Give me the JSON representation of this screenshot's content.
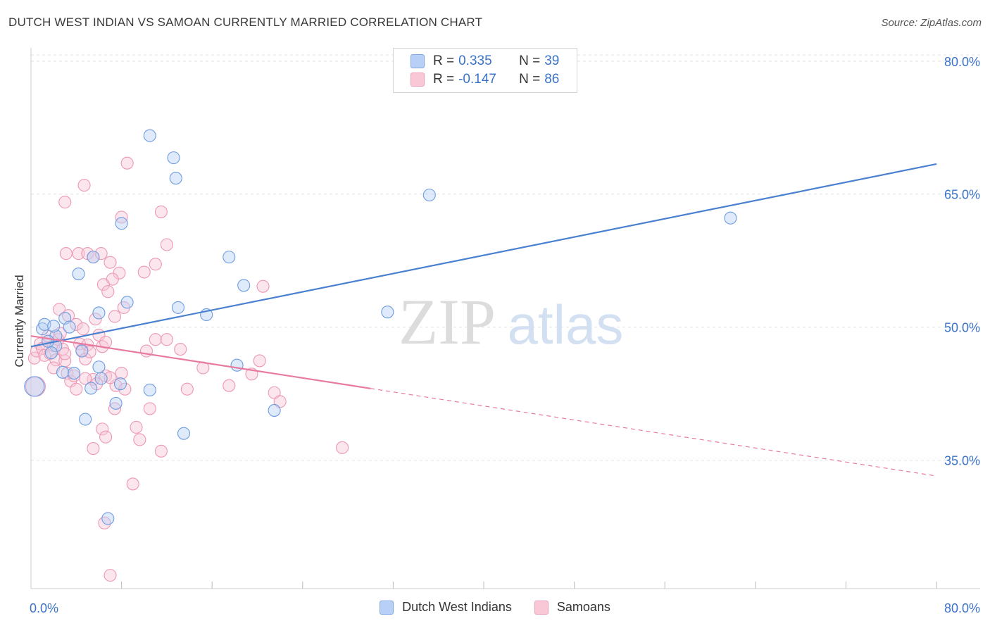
{
  "header": {
    "title": "DUTCH WEST INDIAN VS SAMOAN CURRENTLY MARRIED CORRELATION CHART",
    "source": "Source: ZipAtlas.com"
  },
  "watermark": {
    "zip": "ZIP",
    "atlas": "atlas"
  },
  "legend": {
    "r_label": "R =",
    "n_label": "N =",
    "series": [
      {
        "name": "Dutch West Indians",
        "r": "0.335",
        "n": "39",
        "color": "#7fa8e8",
        "fill": "#b8d0f5"
      },
      {
        "name": "Samoans",
        "r": "-0.147",
        "n": "86",
        "color": "#f0a0b8",
        "fill": "#f9c8d6"
      }
    ]
  },
  "chart_data": {
    "type": "scatter",
    "title": "DUTCH WEST INDIAN VS SAMOAN CURRENTLY MARRIED CORRELATION CHART",
    "xlabel": "",
    "ylabel": "Currently Married",
    "xlim": [
      0,
      80
    ],
    "ylim": [
      20.5,
      81.5
    ],
    "x_ticks": [
      "0.0%",
      "80.0%"
    ],
    "y_ticks": [
      {
        "value": 80,
        "label": "80.0%"
      },
      {
        "value": 65,
        "label": "65.0%"
      },
      {
        "value": 50,
        "label": "50.0%"
      },
      {
        "value": 35,
        "label": "35.0%"
      }
    ],
    "grid": true,
    "series": [
      {
        "name": "Dutch West Indians",
        "color": "#4a80d0",
        "trend": {
          "x0": 0,
          "y0": 47.8,
          "x1": 80,
          "y1": 68.4,
          "solid_until": 80
        },
        "points": [
          [
            1.0,
            49.8
          ],
          [
            1.2,
            50.3
          ],
          [
            2.2,
            49.0
          ],
          [
            2.0,
            50.1
          ],
          [
            2.2,
            47.9
          ],
          [
            1.5,
            48.4
          ],
          [
            3.0,
            51.0
          ],
          [
            4.5,
            47.3
          ],
          [
            2.8,
            44.9
          ],
          [
            3.8,
            44.8
          ],
          [
            6.0,
            45.5
          ],
          [
            5.3,
            43.1
          ],
          [
            6.2,
            44.2
          ],
          [
            7.9,
            43.6
          ],
          [
            4.8,
            39.6
          ],
          [
            7.5,
            41.4
          ],
          [
            6.8,
            28.4
          ],
          [
            4.2,
            56.0
          ],
          [
            5.5,
            57.9
          ],
          [
            6.0,
            51.6
          ],
          [
            8.5,
            52.8
          ],
          [
            8.0,
            61.7
          ],
          [
            10.5,
            71.6
          ],
          [
            12.6,
            69.1
          ],
          [
            12.8,
            66.8
          ],
          [
            13.0,
            52.2
          ],
          [
            15.5,
            51.4
          ],
          [
            17.5,
            57.9
          ],
          [
            18.8,
            54.7
          ],
          [
            10.5,
            42.9
          ],
          [
            13.5,
            38.0
          ],
          [
            18.2,
            45.7
          ],
          [
            21.5,
            40.6
          ],
          [
            31.5,
            51.7
          ],
          [
            35.2,
            64.9
          ],
          [
            61.8,
            62.3
          ],
          [
            0.3,
            43.3
          ],
          [
            1.8,
            47.1
          ],
          [
            3.4,
            50.0
          ]
        ]
      },
      {
        "name": "Samoans",
        "color": "#e87aa0",
        "trend": {
          "x0": 0,
          "y0": 49.0,
          "x1": 80,
          "y1": 33.2,
          "solid_until": 30
        },
        "points": [
          [
            0.3,
            46.5
          ],
          [
            0.5,
            47.3
          ],
          [
            0.8,
            48.1
          ],
          [
            1.0,
            47.6
          ],
          [
            1.2,
            46.8
          ],
          [
            1.5,
            48.4
          ],
          [
            1.7,
            47.0
          ],
          [
            2.0,
            47.9
          ],
          [
            2.2,
            46.3
          ],
          [
            2.4,
            48.6
          ],
          [
            2.6,
            49.3
          ],
          [
            2.8,
            47.5
          ],
          [
            3.0,
            46.2
          ],
          [
            3.2,
            44.8
          ],
          [
            3.5,
            43.9
          ],
          [
            3.8,
            44.5
          ],
          [
            4.0,
            43.0
          ],
          [
            4.3,
            48.1
          ],
          [
            4.5,
            47.4
          ],
          [
            4.8,
            46.4
          ],
          [
            5.0,
            48.0
          ],
          [
            5.2,
            47.2
          ],
          [
            5.5,
            44.1
          ],
          [
            5.8,
            43.6
          ],
          [
            6.0,
            49.1
          ],
          [
            6.3,
            47.8
          ],
          [
            6.6,
            48.3
          ],
          [
            2.5,
            52.0
          ],
          [
            3.3,
            51.3
          ],
          [
            4.0,
            50.3
          ],
          [
            4.6,
            49.8
          ],
          [
            5.7,
            50.9
          ],
          [
            3.1,
            58.3
          ],
          [
            4.2,
            58.3
          ],
          [
            5.0,
            58.3
          ],
          [
            5.5,
            57.9
          ],
          [
            6.2,
            58.3
          ],
          [
            7.0,
            57.3
          ],
          [
            7.8,
            56.1
          ],
          [
            7.2,
            55.4
          ],
          [
            6.4,
            54.8
          ],
          [
            6.8,
            54.0
          ],
          [
            8.2,
            52.2
          ],
          [
            7.4,
            51.2
          ],
          [
            3.0,
            64.1
          ],
          [
            4.7,
            66.0
          ],
          [
            8.0,
            62.4
          ],
          [
            8.5,
            68.5
          ],
          [
            11.5,
            63.0
          ],
          [
            12.0,
            59.3
          ],
          [
            11.0,
            57.1
          ],
          [
            10.0,
            56.2
          ],
          [
            13.2,
            47.5
          ],
          [
            11.0,
            48.6
          ],
          [
            10.2,
            47.3
          ],
          [
            8.0,
            44.8
          ],
          [
            7.5,
            43.4
          ],
          [
            6.6,
            44.5
          ],
          [
            7.0,
            44.3
          ],
          [
            8.3,
            43.0
          ],
          [
            9.3,
            38.7
          ],
          [
            9.6,
            37.3
          ],
          [
            7.4,
            40.8
          ],
          [
            6.3,
            38.5
          ],
          [
            6.6,
            37.6
          ],
          [
            5.5,
            36.3
          ],
          [
            10.5,
            40.8
          ],
          [
            11.5,
            36.0
          ],
          [
            13.8,
            43.0
          ],
          [
            15.2,
            45.4
          ],
          [
            17.5,
            43.4
          ],
          [
            19.5,
            44.7
          ],
          [
            20.2,
            46.2
          ],
          [
            21.5,
            42.6
          ],
          [
            22.0,
            41.6
          ],
          [
            20.5,
            54.6
          ],
          [
            27.5,
            36.4
          ],
          [
            6.5,
            27.9
          ],
          [
            7.0,
            22.0
          ],
          [
            9.0,
            32.3
          ],
          [
            12.0,
            48.6
          ],
          [
            3.0,
            47.0
          ],
          [
            1.5,
            49.0
          ],
          [
            2.0,
            45.4
          ],
          [
            0.4,
            43.3
          ],
          [
            4.8,
            44.2
          ]
        ]
      }
    ]
  }
}
